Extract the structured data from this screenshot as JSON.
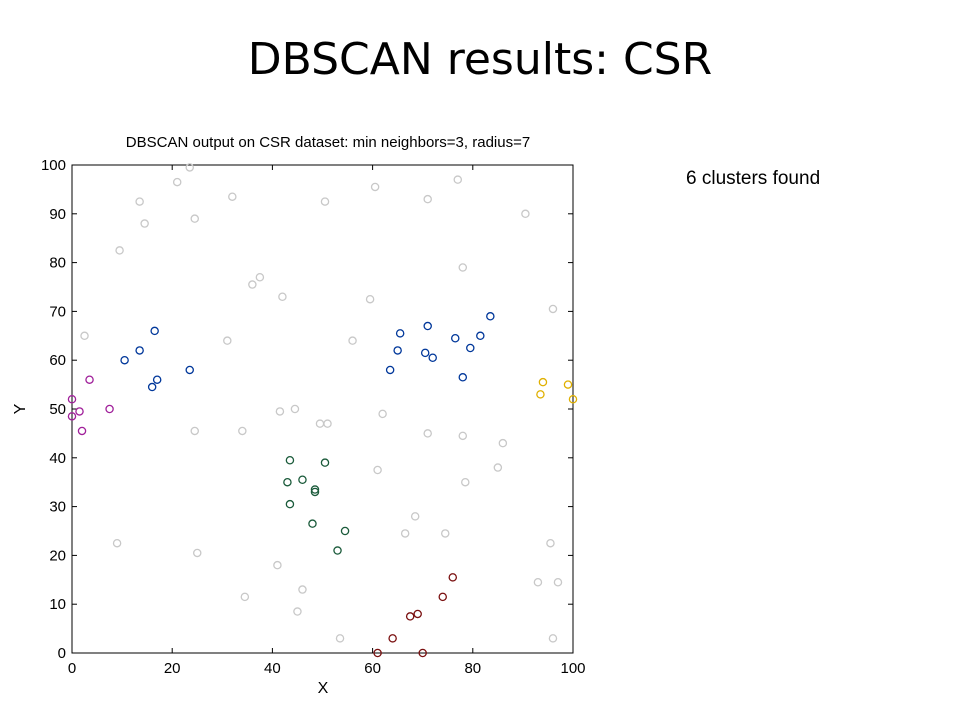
{
  "slide": {
    "title": "DBSCAN results: CSR",
    "note": "6 clusters found"
  },
  "chart_data": {
    "type": "scatter",
    "title": "DBSCAN output on CSR dataset: min neighbors=3, radius=7",
    "xlabel": "X",
    "ylabel": "Y",
    "xlim": [
      0,
      100
    ],
    "ylim": [
      0,
      100
    ],
    "xticks": [
      0,
      20,
      40,
      60,
      80,
      100
    ],
    "yticks": [
      0,
      10,
      20,
      30,
      40,
      50,
      60,
      70,
      80,
      90,
      100
    ],
    "grid": false,
    "series": [
      {
        "color": "#c8c8c8",
        "points": [
          [
            23.5,
            99.5
          ],
          [
            21,
            96.5
          ],
          [
            13.5,
            92.5
          ],
          [
            14.5,
            88
          ],
          [
            24.5,
            89
          ],
          [
            32,
            93.5
          ],
          [
            9.5,
            82.5
          ],
          [
            60.5,
            95.5
          ],
          [
            50.5,
            92.5
          ],
          [
            71,
            93
          ],
          [
            77,
            97
          ],
          [
            90.5,
            90
          ],
          [
            78,
            79
          ],
          [
            37.5,
            77
          ],
          [
            36,
            75.5
          ],
          [
            42,
            73
          ],
          [
            59.5,
            72.5
          ],
          [
            96,
            70.5
          ],
          [
            2.5,
            65
          ],
          [
            31,
            64
          ],
          [
            56,
            64
          ],
          [
            41.5,
            49.5
          ],
          [
            44.5,
            50
          ],
          [
            62,
            49
          ],
          [
            49.5,
            47
          ],
          [
            51,
            47
          ],
          [
            24.5,
            45.5
          ],
          [
            34,
            45.5
          ],
          [
            71,
            45
          ],
          [
            78,
            44.5
          ],
          [
            86,
            43
          ],
          [
            61,
            37.5
          ],
          [
            85,
            38
          ],
          [
            78.5,
            35
          ],
          [
            68.5,
            28
          ],
          [
            66.5,
            24.5
          ],
          [
            74.5,
            24.5
          ],
          [
            9,
            22.5
          ],
          [
            25,
            20.5
          ],
          [
            95.5,
            22.5
          ],
          [
            41,
            18
          ],
          [
            93,
            14.5
          ],
          [
            97,
            14.5
          ],
          [
            46,
            13
          ],
          [
            34.5,
            11.5
          ],
          [
            45,
            8.5
          ],
          [
            53.5,
            3
          ],
          [
            96,
            3
          ]
        ]
      },
      {
        "color": "#00379a",
        "points": [
          [
            16.5,
            66
          ],
          [
            13.5,
            62
          ],
          [
            10.5,
            60
          ],
          [
            17,
            56
          ],
          [
            16,
            54.5
          ],
          [
            23.5,
            58
          ],
          [
            65.5,
            65.5
          ],
          [
            71,
            67
          ],
          [
            76.5,
            64.5
          ],
          [
            81.5,
            65
          ],
          [
            83.5,
            69
          ],
          [
            65,
            62
          ],
          [
            70.5,
            61.5
          ],
          [
            72,
            60.5
          ],
          [
            79.5,
            62.5
          ],
          [
            63.5,
            58
          ],
          [
            78,
            56.5
          ]
        ]
      },
      {
        "color": "#a0209a",
        "points": [
          [
            3.5,
            56
          ],
          [
            0,
            52
          ],
          [
            1.5,
            49.5
          ],
          [
            0,
            48.5
          ],
          [
            2,
            45.5
          ],
          [
            7.5,
            50
          ]
        ]
      },
      {
        "color": "#e0b000",
        "points": [
          [
            94,
            55.5
          ],
          [
            99,
            55
          ],
          [
            93.5,
            53
          ],
          [
            100,
            52
          ]
        ]
      },
      {
        "color": "#1a5a3a",
        "points": [
          [
            43.5,
            39.5
          ],
          [
            50.5,
            39
          ],
          [
            46,
            35.5
          ],
          [
            43,
            35
          ],
          [
            48.5,
            33.5
          ],
          [
            48.5,
            33
          ],
          [
            43.5,
            30.5
          ],
          [
            48,
            26.5
          ],
          [
            54.5,
            25
          ],
          [
            53,
            21
          ]
        ]
      },
      {
        "color": "#7a1010",
        "points": [
          [
            76,
            15.5
          ],
          [
            74,
            11.5
          ],
          [
            69,
            8
          ],
          [
            67.5,
            7.5
          ],
          [
            64,
            3
          ],
          [
            61,
            0
          ],
          [
            70,
            0
          ]
        ]
      }
    ]
  }
}
